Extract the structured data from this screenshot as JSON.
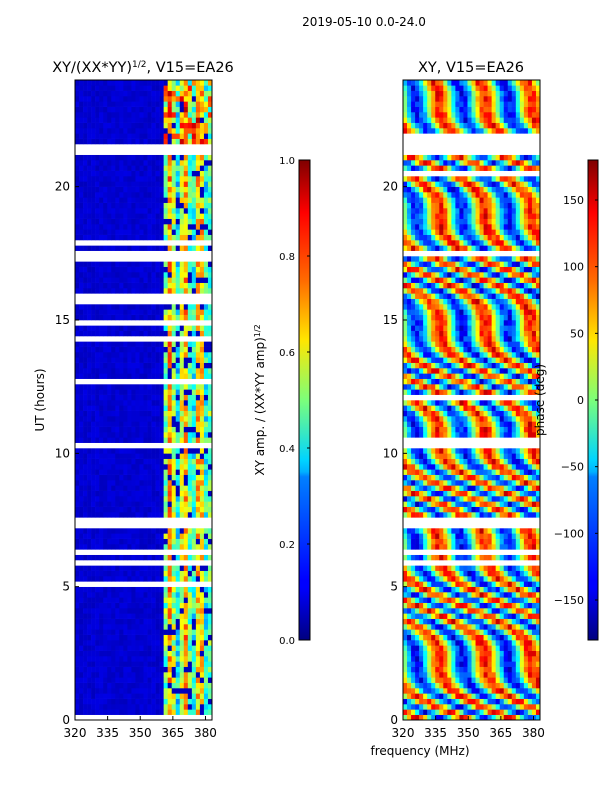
{
  "figure_title": "2019-05-10 0.0-24.0",
  "chart_data": [
    {
      "type": "heatmap",
      "title_main": "XY/(XX*YY)",
      "title_exp": "1/2",
      "title_tail": ", V15=EA26",
      "xlabel": "",
      "ylabel": "UT (hours)",
      "xlim": [
        320,
        383
      ],
      "ylim": [
        0,
        24
      ],
      "xticks": [
        320,
        335,
        350,
        365,
        380
      ],
      "yticks": [
        0,
        5,
        10,
        15,
        20
      ],
      "colorbar": {
        "label_main": "XY amp. / (XX*YY amp)",
        "label_exp": "1/2",
        "range": [
          0.0,
          1.0
        ],
        "ticks": [
          "0.0",
          "0.2",
          "0.4",
          "0.6",
          "0.8",
          "1.0"
        ],
        "tick_values": [
          0.0,
          0.2,
          0.4,
          0.6,
          0.8,
          1.0
        ]
      },
      "cmap": "jet",
      "flagged_ut_bands": [
        [
          21.3,
          21.6
        ],
        [
          17.4,
          17.55
        ],
        [
          10.2,
          10.45
        ],
        [
          7.3,
          7.6
        ],
        [
          6.2,
          6.35
        ],
        [
          5.9,
          6.0
        ]
      ],
      "signal_freq_range": [
        360,
        383
      ]
    },
    {
      "type": "heatmap",
      "title_main": "XY, V15=EA26",
      "xlabel": "frequency (MHz)",
      "ylabel": "",
      "xlim": [
        320,
        383
      ],
      "ylim": [
        0,
        24
      ],
      "xticks": [
        320,
        335,
        350,
        365,
        380
      ],
      "yticks": [
        0,
        5,
        10,
        15,
        20
      ],
      "colorbar": {
        "label_main": "phase (deg)",
        "range": [
          -180,
          180
        ],
        "ticks": [
          "−150",
          "−100",
          "−50",
          "0",
          "50",
          "100",
          "150"
        ],
        "tick_values": [
          -150,
          -100,
          -50,
          0,
          50,
          100,
          150
        ]
      },
      "cmap": "jet",
      "flagged_ut_bands": [
        [
          21.3,
          21.6
        ],
        [
          17.4,
          17.55
        ],
        [
          10.2,
          10.45
        ],
        [
          7.3,
          7.6
        ],
        [
          6.2,
          6.35
        ],
        [
          5.9,
          6.0
        ]
      ]
    }
  ]
}
